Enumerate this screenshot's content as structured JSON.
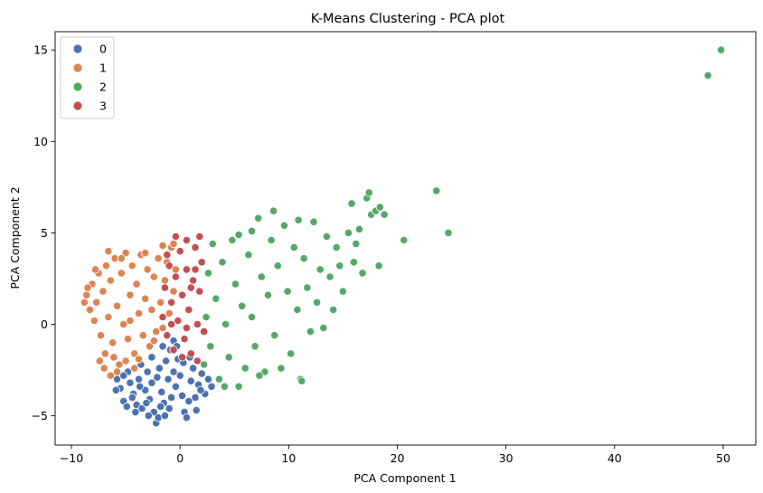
{
  "chart_data": {
    "type": "scatter",
    "title": "K-Means Clustering - PCA plot",
    "xlabel": "PCA Component 1",
    "ylabel": "PCA Component 2",
    "xlim": [
      -11.5,
      53
    ],
    "ylim": [
      -6.6,
      16
    ],
    "xticks": [
      -10,
      0,
      10,
      20,
      30,
      40,
      50
    ],
    "yticks": [
      -5,
      0,
      5,
      10,
      15
    ],
    "grid": false,
    "legend_position": "top-left",
    "series": [
      {
        "name": "0",
        "color": "#4c72b0",
        "points": [
          [
            -5.8,
            -3.0
          ],
          [
            -5.5,
            -3.5
          ],
          [
            -5.2,
            -4.2
          ],
          [
            -4.9,
            -4.5
          ],
          [
            -4.6,
            -3.2
          ],
          [
            -4.3,
            -3.8
          ],
          [
            -4.0,
            -4.4
          ],
          [
            -3.8,
            -3.0
          ],
          [
            -3.5,
            -4.6
          ],
          [
            -3.2,
            -3.6
          ],
          [
            -3.0,
            -2.6
          ],
          [
            -2.8,
            -4.1
          ],
          [
            -2.6,
            -3.2
          ],
          [
            -2.4,
            -4.8
          ],
          [
            -2.2,
            -5.4
          ],
          [
            -2.0,
            -5.1
          ],
          [
            -1.9,
            -2.4
          ],
          [
            -1.7,
            -3.7
          ],
          [
            -1.5,
            -4.3
          ],
          [
            -1.3,
            -2.0
          ],
          [
            -1.1,
            -3.0
          ],
          [
            -0.9,
            -1.4
          ],
          [
            -0.8,
            -4.0
          ],
          [
            -0.6,
            -2.6
          ],
          [
            -0.4,
            -3.4
          ],
          [
            -0.2,
            -1.9
          ],
          [
            0.0,
            -2.8
          ],
          [
            0.2,
            -3.9
          ],
          [
            0.4,
            -4.8
          ],
          [
            0.6,
            -5.1
          ],
          [
            0.8,
            -4.2
          ],
          [
            1.0,
            -3.1
          ],
          [
            1.2,
            -2.4
          ],
          [
            1.4,
            -4.0
          ],
          [
            1.7,
            -3.3
          ],
          [
            2.0,
            -2.7
          ],
          [
            2.3,
            -3.8
          ],
          [
            2.6,
            -3.0
          ],
          [
            2.9,
            -3.4
          ],
          [
            -3.6,
            -2.2
          ],
          [
            -2.6,
            -1.8
          ],
          [
            -1.6,
            -1.2
          ],
          [
            -0.6,
            -0.9
          ],
          [
            -4.8,
            -2.6
          ],
          [
            -5.9,
            -3.6
          ],
          [
            -4.1,
            -4.8
          ],
          [
            -3.1,
            -4.3
          ],
          [
            -1.4,
            -5.0
          ],
          [
            1.5,
            -4.7
          ],
          [
            0.3,
            -2.1
          ],
          [
            -2.1,
            -2.9
          ],
          [
            -3.7,
            -3.4
          ],
          [
            -1.0,
            -4.6
          ],
          [
            0.9,
            -1.8
          ],
          [
            -5.2,
            -2.8
          ],
          [
            -2.9,
            -5.0
          ],
          [
            1.9,
            -3.6
          ],
          [
            -0.3,
            -1.2
          ],
          [
            -4.4,
            -4.0
          ],
          [
            -1.8,
            -4.5
          ]
        ]
      },
      {
        "name": "1",
        "color": "#dd8452",
        "points": [
          [
            -8.6,
            1.6
          ],
          [
            -8.3,
            0.8
          ],
          [
            -8.1,
            2.2
          ],
          [
            -7.9,
            0.2
          ],
          [
            -7.7,
            1.2
          ],
          [
            -7.5,
            2.8
          ],
          [
            -7.3,
            -0.6
          ],
          [
            -7.1,
            1.8
          ],
          [
            -6.9,
            -1.6
          ],
          [
            -6.8,
            3.2
          ],
          [
            -6.6,
            0.4
          ],
          [
            -6.4,
            2.4
          ],
          [
            -6.2,
            -1.0
          ],
          [
            -6.0,
            3.6
          ],
          [
            -5.8,
            1.0
          ],
          [
            -5.6,
            -2.2
          ],
          [
            -5.4,
            2.8
          ],
          [
            -5.2,
            0.0
          ],
          [
            -5.0,
            3.9
          ],
          [
            -4.8,
            -0.8
          ],
          [
            -4.6,
            1.6
          ],
          [
            -4.4,
            3.2
          ],
          [
            -4.2,
            -1.6
          ],
          [
            -4.0,
            2.2
          ],
          [
            -3.8,
            0.6
          ],
          [
            -3.6,
            3.8
          ],
          [
            -3.4,
            -0.6
          ],
          [
            -3.2,
            1.4
          ],
          [
            -3.0,
            3.0
          ],
          [
            -2.8,
            -1.2
          ],
          [
            -2.6,
            0.8
          ],
          [
            -2.4,
            2.6
          ],
          [
            -2.2,
            -0.4
          ],
          [
            -2.0,
            3.6
          ],
          [
            -1.8,
            1.2
          ],
          [
            -1.6,
            -0.2
          ],
          [
            -1.4,
            2.4
          ],
          [
            -1.2,
            3.4
          ],
          [
            -1.0,
            0.6
          ],
          [
            -0.8,
            4.2
          ],
          [
            -0.6,
            1.8
          ],
          [
            -0.4,
            3.0
          ],
          [
            -7.4,
            -2.0
          ],
          [
            -7.0,
            -2.4
          ],
          [
            -6.4,
            -2.8
          ],
          [
            -5.8,
            -2.6
          ],
          [
            -5.0,
            -2.0
          ],
          [
            -4.2,
            -2.4
          ],
          [
            -8.8,
            1.2
          ],
          [
            -8.5,
            2.0
          ],
          [
            -6.6,
            4.0
          ],
          [
            -5.4,
            3.6
          ],
          [
            -3.2,
            3.9
          ],
          [
            -1.6,
            4.3
          ],
          [
            -0.6,
            4.4
          ],
          [
            -7.8,
            3.0
          ],
          [
            -2.4,
            -0.9
          ],
          [
            -3.8,
            -1.9
          ],
          [
            -6.1,
            -1.8
          ],
          [
            -4.6,
            0.2
          ]
        ]
      },
      {
        "name": "2",
        "color": "#55a868",
        "points": [
          [
            2.2,
            -2.2
          ],
          [
            2.4,
            0.4
          ],
          [
            2.6,
            2.8
          ],
          [
            2.8,
            -1.2
          ],
          [
            3.0,
            4.4
          ],
          [
            3.3,
            1.4
          ],
          [
            3.6,
            -3.0
          ],
          [
            3.9,
            3.4
          ],
          [
            4.2,
            0.0
          ],
          [
            4.5,
            -1.8
          ],
          [
            4.8,
            4.6
          ],
          [
            5.1,
            2.2
          ],
          [
            5.4,
            -3.4
          ],
          [
            5.7,
            1.0
          ],
          [
            6.0,
            -2.4
          ],
          [
            6.3,
            3.8
          ],
          [
            6.6,
            0.4
          ],
          [
            6.9,
            -1.2
          ],
          [
            7.2,
            5.8
          ],
          [
            7.5,
            2.6
          ],
          [
            7.8,
            -2.6
          ],
          [
            8.1,
            1.6
          ],
          [
            8.4,
            4.6
          ],
          [
            8.7,
            -0.6
          ],
          [
            9.0,
            3.2
          ],
          [
            9.3,
            -2.4
          ],
          [
            9.6,
            5.4
          ],
          [
            9.9,
            1.8
          ],
          [
            10.2,
            -1.6
          ],
          [
            10.5,
            4.2
          ],
          [
            10.8,
            0.8
          ],
          [
            11.1,
            -3.0
          ],
          [
            11.4,
            3.6
          ],
          [
            11.7,
            2.0
          ],
          [
            12.0,
            -0.4
          ],
          [
            12.3,
            5.6
          ],
          [
            12.6,
            1.2
          ],
          [
            12.9,
            3.0
          ],
          [
            13.2,
            -0.2
          ],
          [
            13.5,
            4.8
          ],
          [
            13.8,
            2.6
          ],
          [
            14.1,
            0.8
          ],
          [
            14.4,
            4.2
          ],
          [
            14.7,
            3.2
          ],
          [
            15.0,
            1.8
          ],
          [
            15.5,
            5.0
          ],
          [
            16.0,
            3.4
          ],
          [
            16.5,
            5.2
          ],
          [
            16.8,
            2.8
          ],
          [
            17.2,
            6.9
          ],
          [
            17.6,
            6.0
          ],
          [
            18.0,
            6.2
          ],
          [
            18.4,
            6.4
          ],
          [
            18.8,
            6.0
          ],
          [
            18.3,
            3.2
          ],
          [
            17.4,
            7.2
          ],
          [
            16.2,
            4.4
          ],
          [
            15.8,
            6.6
          ],
          [
            20.6,
            4.6
          ],
          [
            23.6,
            7.3
          ],
          [
            24.7,
            5.0
          ],
          [
            48.6,
            13.6
          ],
          [
            49.8,
            15.0
          ],
          [
            11.2,
            -3.1
          ],
          [
            8.6,
            6.2
          ],
          [
            10.9,
            5.7
          ],
          [
            6.6,
            5.1
          ],
          [
            5.4,
            4.9
          ],
          [
            4.1,
            -3.4
          ],
          [
            7.3,
            -2.8
          ]
        ]
      },
      {
        "name": "3",
        "color": "#c44e52",
        "points": [
          [
            -1.6,
            0.4
          ],
          [
            -1.4,
            2.0
          ],
          [
            -1.2,
            -0.6
          ],
          [
            -1.0,
            3.2
          ],
          [
            -0.8,
            1.2
          ],
          [
            -0.6,
            -1.4
          ],
          [
            -0.4,
            2.6
          ],
          [
            -0.2,
            0.2
          ],
          [
            0.0,
            4.0
          ],
          [
            0.2,
            1.6
          ],
          [
            0.4,
            -0.8
          ],
          [
            0.6,
            3.0
          ],
          [
            0.8,
            0.8
          ],
          [
            1.0,
            -1.6
          ],
          [
            1.2,
            2.4
          ],
          [
            1.4,
            4.2
          ],
          [
            1.6,
            0.0
          ],
          [
            1.8,
            1.8
          ],
          [
            2.0,
            3.4
          ],
          [
            2.2,
            -0.4
          ],
          [
            -0.4,
            4.8
          ],
          [
            0.6,
            4.6
          ],
          [
            1.8,
            4.8
          ],
          [
            1.6,
            -2.0
          ],
          [
            0.2,
            -1.8
          ],
          [
            -1.2,
            3.8
          ],
          [
            1.0,
            2.0
          ],
          [
            -0.8,
            0.0
          ],
          [
            0.6,
            -0.2
          ],
          [
            1.4,
            3.0
          ]
        ]
      }
    ]
  }
}
